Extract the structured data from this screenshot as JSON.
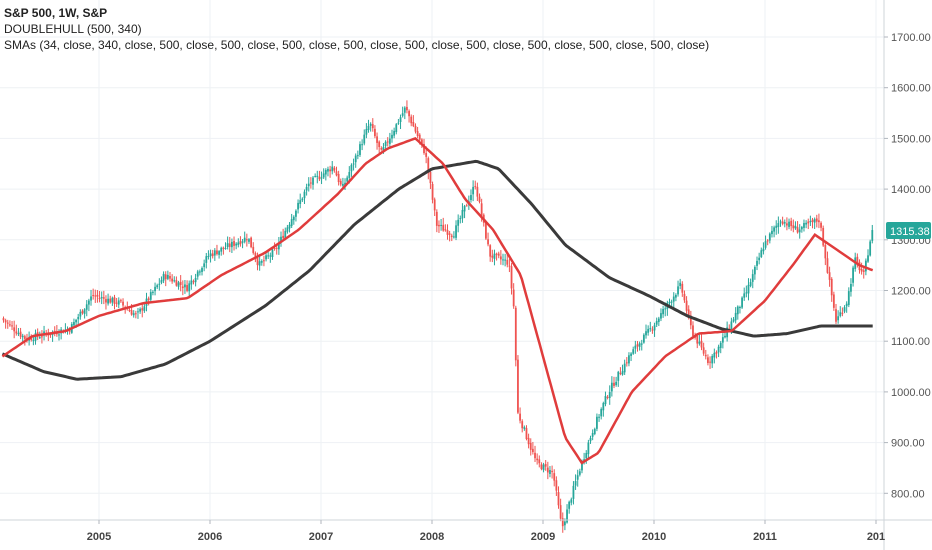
{
  "legend": {
    "title": "S&P 500, 1W, S&P",
    "indicator1": "DOUBLEHULL (500, 340)",
    "indicator2": "SMAs (34, close, 340, close, 500, close, 500, close, 500, close, 500, close, 500, close, 500, close, 500, close, 500, close, 500, close)"
  },
  "colors": {
    "up": "#26a69a",
    "down": "#ef5350",
    "sma34": "#e03c3c",
    "hull": "#3a3a3a",
    "grid": "#eef1f4",
    "last_price_bg": "#26a69a"
  },
  "chart_data": {
    "type": "candlestick",
    "title": "S&P 500, 1W, S&P",
    "ylim": [
      730,
      1780
    ],
    "xlim": [
      2004.13,
      2011.97
    ],
    "y_ticks": [
      "1700.00",
      "1600.00",
      "1500.00",
      "1400.00",
      "1300.00",
      "1200.00",
      "1100.00",
      "1000.00",
      "900.00",
      "800.00"
    ],
    "x_ticks": [
      "2005",
      "2006",
      "2007",
      "2008",
      "2009",
      "2010",
      "2011",
      "201"
    ],
    "last_price": "1315.38",
    "price_anchors": [
      [
        2004.13,
        1145
      ],
      [
        2004.35,
        1105
      ],
      [
        2004.55,
        1115
      ],
      [
        2004.75,
        1125
      ],
      [
        2004.95,
        1190
      ],
      [
        2005.2,
        1175
      ],
      [
        2005.35,
        1150
      ],
      [
        2005.6,
        1230
      ],
      [
        2005.8,
        1205
      ],
      [
        2006.0,
        1270
      ],
      [
        2006.35,
        1305
      ],
      [
        2006.45,
        1250
      ],
      [
        2006.6,
        1280
      ],
      [
        2006.9,
        1410
      ],
      [
        2007.12,
        1445
      ],
      [
        2007.2,
        1400
      ],
      [
        2007.45,
        1530
      ],
      [
        2007.55,
        1470
      ],
      [
        2007.77,
        1560
      ],
      [
        2007.95,
        1470
      ],
      [
        2008.05,
        1330
      ],
      [
        2008.2,
        1310
      ],
      [
        2008.4,
        1410
      ],
      [
        2008.53,
        1270
      ],
      [
        2008.7,
        1255
      ],
      [
        2008.75,
        1160
      ],
      [
        2008.78,
        960
      ],
      [
        2008.95,
        860
      ],
      [
        2009.1,
        840
      ],
      [
        2009.18,
        730
      ],
      [
        2009.3,
        820
      ],
      [
        2009.45,
        920
      ],
      [
        2009.6,
        1000
      ],
      [
        2009.8,
        1075
      ],
      [
        2010.0,
        1130
      ],
      [
        2010.25,
        1210
      ],
      [
        2010.35,
        1120
      ],
      [
        2010.5,
        1060
      ],
      [
        2010.6,
        1090
      ],
      [
        2010.85,
        1200
      ],
      [
        2011.0,
        1290
      ],
      [
        2011.15,
        1340
      ],
      [
        2011.3,
        1320
      ],
      [
        2011.5,
        1340
      ],
      [
        2011.58,
        1230
      ],
      [
        2011.65,
        1140
      ],
      [
        2011.75,
        1180
      ],
      [
        2011.82,
        1260
      ],
      [
        2011.9,
        1230
      ],
      [
        2011.97,
        1315
      ]
    ],
    "hull_anchors": [
      [
        2004.13,
        1075
      ],
      [
        2004.5,
        1040
      ],
      [
        2004.8,
        1025
      ],
      [
        2005.2,
        1030
      ],
      [
        2005.6,
        1055
      ],
      [
        2006.0,
        1100
      ],
      [
        2006.5,
        1170
      ],
      [
        2006.9,
        1240
      ],
      [
        2007.3,
        1330
      ],
      [
        2007.7,
        1400
      ],
      [
        2008.0,
        1440
      ],
      [
        2008.4,
        1455
      ],
      [
        2008.6,
        1440
      ],
      [
        2008.9,
        1370
      ],
      [
        2009.2,
        1290
      ],
      [
        2009.6,
        1225
      ],
      [
        2009.95,
        1190
      ],
      [
        2010.3,
        1150
      ],
      [
        2010.6,
        1125
      ],
      [
        2010.9,
        1110
      ],
      [
        2011.2,
        1115
      ],
      [
        2011.5,
        1130
      ],
      [
        2011.97,
        1130
      ]
    ],
    "sma_anchors": [
      [
        2004.13,
        1070
      ],
      [
        2004.4,
        1110
      ],
      [
        2004.7,
        1120
      ],
      [
        2005.0,
        1150
      ],
      [
        2005.4,
        1175
      ],
      [
        2005.8,
        1185
      ],
      [
        2006.1,
        1230
      ],
      [
        2006.5,
        1275
      ],
      [
        2006.8,
        1320
      ],
      [
        2007.15,
        1390
      ],
      [
        2007.4,
        1450
      ],
      [
        2007.6,
        1480
      ],
      [
        2007.85,
        1500
      ],
      [
        2008.1,
        1450
      ],
      [
        2008.3,
        1380
      ],
      [
        2008.55,
        1320
      ],
      [
        2008.8,
        1230
      ],
      [
        2009.0,
        1070
      ],
      [
        2009.2,
        910
      ],
      [
        2009.35,
        860
      ],
      [
        2009.5,
        880
      ],
      [
        2009.8,
        1000
      ],
      [
        2010.1,
        1070
      ],
      [
        2010.4,
        1115
      ],
      [
        2010.7,
        1120
      ],
      [
        2011.0,
        1180
      ],
      [
        2011.25,
        1250
      ],
      [
        2011.45,
        1310
      ],
      [
        2011.65,
        1280
      ],
      [
        2011.85,
        1250
      ],
      [
        2011.97,
        1240
      ]
    ]
  }
}
